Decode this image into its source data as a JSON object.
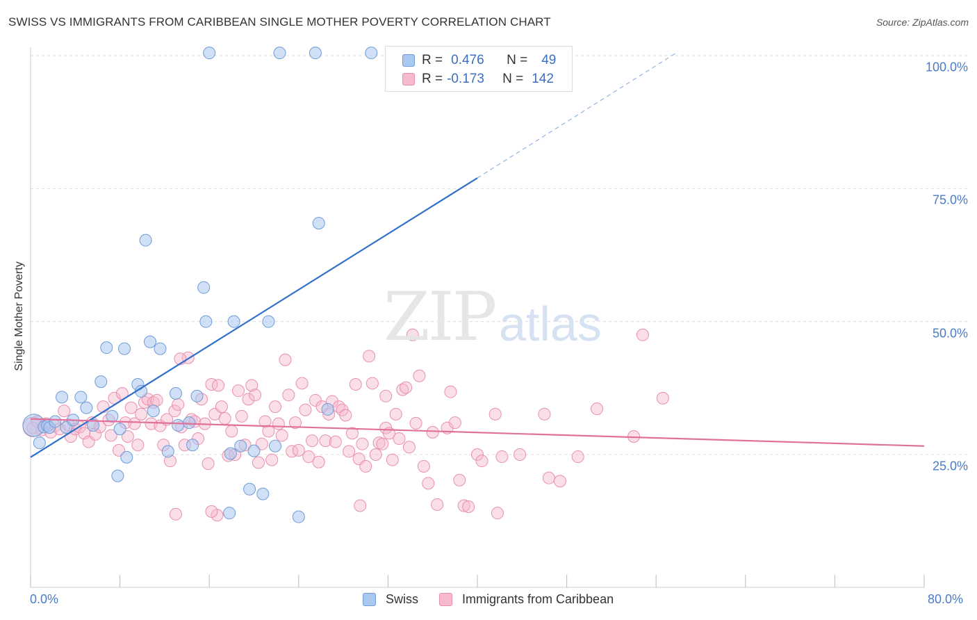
{
  "title": "SWISS VS IMMIGRANTS FROM CARIBBEAN SINGLE MOTHER POVERTY CORRELATION CHART",
  "source": "Source: ZipAtlas.com",
  "watermark": {
    "zip": "ZIP",
    "atlas": "atlas"
  },
  "colors": {
    "swiss_fill": "#a9c7ef",
    "swiss_stroke": "#6f9bd8",
    "swiss_line": "#2f6fcc",
    "carib_fill": "#f6b9cd",
    "carib_stroke": "#e88fae",
    "carib_line": "#e0719a",
    "grid": "#dddddd",
    "tick_text": "#4a7cc7"
  },
  "legend": {
    "rows": [
      {
        "r_label": "R =",
        "r_value": "0.476",
        "n_label": "N =",
        "n_value": "49"
      },
      {
        "r_label": "R =",
        "r_value": "-0.173",
        "n_label": "N =",
        "n_value": "142"
      }
    ]
  },
  "bottom_legend": {
    "swiss": "Swiss",
    "carib": "Immigrants from Caribbean"
  },
  "chart_data": {
    "type": "scatter",
    "title": "SWISS VS IMMIGRANTS FROM CARIBBEAN SINGLE MOTHER POVERTY CORRELATION CHART",
    "xlabel": "",
    "ylabel": "Single Mother Poverty",
    "xlim": [
      0,
      80
    ],
    "ylim": [
      0,
      105
    ],
    "x_tick_labels": [
      "0.0%",
      "80.0%"
    ],
    "y_ticks": [
      25,
      50,
      75,
      100
    ],
    "y_tick_labels": [
      "25.0%",
      "50.0%",
      "75.0%",
      "100.0%"
    ],
    "grid": true,
    "legend_position": "top-center",
    "series": [
      {
        "name": "Swiss",
        "r": 0.476,
        "n": 49,
        "trend": {
          "x": [
            0,
            40
          ],
          "y": [
            24.5,
            77
          ]
        },
        "trend_dashed": {
          "x": [
            40,
            57.8
          ],
          "y": [
            77,
            100.5
          ]
        },
        "points": [
          [
            0.3,
            30.5
          ],
          [
            0.8,
            27.2
          ],
          [
            1.2,
            30.2
          ],
          [
            1.5,
            30.4
          ],
          [
            1.7,
            30.1
          ],
          [
            2.2,
            31.2
          ],
          [
            2.8,
            35.8
          ],
          [
            3.2,
            30.1
          ],
          [
            3.8,
            31.5
          ],
          [
            4.5,
            35.8
          ],
          [
            5.0,
            33.8
          ],
          [
            5.6,
            30.5
          ],
          [
            6.3,
            38.7
          ],
          [
            6.8,
            45.1
          ],
          [
            7.3,
            32.2
          ],
          [
            7.8,
            21.0
          ],
          [
            8.4,
            44.9
          ],
          [
            8.6,
            24.5
          ],
          [
            9.6,
            38.2
          ],
          [
            10.3,
            65.3
          ],
          [
            10.7,
            46.2
          ],
          [
            9.9,
            36.9
          ],
          [
            11.0,
            33.2
          ],
          [
            11.6,
            44.9
          ],
          [
            12.3,
            25.6
          ],
          [
            13.2,
            30.5
          ],
          [
            13.0,
            36.5
          ],
          [
            14.2,
            31.0
          ],
          [
            14.5,
            26.8
          ],
          [
            14.9,
            36.0
          ],
          [
            15.5,
            56.4
          ],
          [
            15.7,
            50.0
          ],
          [
            16.0,
            100.5
          ],
          [
            17.8,
            14.0
          ],
          [
            17.9,
            25.2
          ],
          [
            18.2,
            50.0
          ],
          [
            18.8,
            26.6
          ],
          [
            19.6,
            18.5
          ],
          [
            20.0,
            25.7
          ],
          [
            20.8,
            17.6
          ],
          [
            21.3,
            50.0
          ],
          [
            21.9,
            26.6
          ],
          [
            22.3,
            100.5
          ],
          [
            24.0,
            13.3
          ],
          [
            25.5,
            100.5
          ],
          [
            25.8,
            68.5
          ],
          [
            26.6,
            33.5
          ],
          [
            30.5,
            100.5
          ],
          [
            8.0,
            29.8
          ]
        ]
      },
      {
        "name": "Immigrants from Caribbean",
        "r": -0.173,
        "n": 142,
        "trend": {
          "x": [
            0,
            80
          ],
          "y": [
            31.7,
            26.6
          ]
        },
        "points": [
          [
            0.2,
            30.0
          ],
          [
            0.6,
            31.2
          ],
          [
            1.0,
            29.6
          ],
          [
            1.4,
            30.8
          ],
          [
            1.8,
            29.2
          ],
          [
            2.2,
            30.4
          ],
          [
            2.6,
            29.8
          ],
          [
            3.0,
            33.2
          ],
          [
            3.4,
            30.6
          ],
          [
            3.6,
            28.4
          ],
          [
            4.0,
            29.8
          ],
          [
            4.4,
            30.2
          ],
          [
            4.8,
            29.0
          ],
          [
            5.2,
            27.4
          ],
          [
            5.5,
            31.0
          ],
          [
            5.8,
            28.8
          ],
          [
            6.2,
            30.2
          ],
          [
            6.5,
            34.0
          ],
          [
            7.0,
            31.5
          ],
          [
            7.2,
            28.6
          ],
          [
            7.5,
            35.6
          ],
          [
            7.9,
            25.8
          ],
          [
            8.2,
            36.5
          ],
          [
            8.5,
            31.0
          ],
          [
            8.7,
            28.4
          ],
          [
            9.0,
            33.8
          ],
          [
            9.3,
            30.8
          ],
          [
            9.6,
            26.8
          ],
          [
            9.9,
            32.6
          ],
          [
            10.2,
            34.8
          ],
          [
            10.5,
            35.4
          ],
          [
            10.8,
            30.8
          ],
          [
            11.0,
            34.8
          ],
          [
            11.3,
            35.2
          ],
          [
            11.6,
            30.4
          ],
          [
            11.9,
            26.8
          ],
          [
            12.2,
            31.6
          ],
          [
            12.5,
            23.8
          ],
          [
            12.9,
            33.2
          ],
          [
            13.2,
            34.4
          ],
          [
            13.5,
            30.2
          ],
          [
            13.8,
            26.8
          ],
          [
            14.1,
            43.2
          ],
          [
            14.4,
            31.6
          ],
          [
            14.7,
            31.2
          ],
          [
            15.0,
            28.0
          ],
          [
            15.3,
            35.4
          ],
          [
            15.6,
            30.8
          ],
          [
            15.9,
            23.3
          ],
          [
            16.2,
            38.2
          ],
          [
            16.5,
            32.6
          ],
          [
            16.8,
            38.0
          ],
          [
            17.1,
            34.0
          ],
          [
            17.4,
            31.8
          ],
          [
            17.7,
            24.8
          ],
          [
            18.0,
            29.4
          ],
          [
            18.3,
            25.0
          ],
          [
            18.6,
            37.0
          ],
          [
            18.9,
            32.2
          ],
          [
            19.2,
            26.8
          ],
          [
            19.5,
            35.4
          ],
          [
            19.8,
            38.0
          ],
          [
            20.1,
            36.2
          ],
          [
            20.4,
            23.5
          ],
          [
            20.7,
            27.0
          ],
          [
            21.0,
            31.2
          ],
          [
            21.3,
            29.4
          ],
          [
            21.6,
            24.0
          ],
          [
            21.9,
            34.0
          ],
          [
            22.2,
            30.8
          ],
          [
            22.5,
            28.6
          ],
          [
            22.8,
            42.8
          ],
          [
            23.1,
            36.2
          ],
          [
            23.4,
            25.6
          ],
          [
            23.7,
            31.0
          ],
          [
            24.0,
            25.8
          ],
          [
            24.3,
            38.4
          ],
          [
            24.6,
            33.4
          ],
          [
            24.9,
            24.6
          ],
          [
            25.2,
            27.6
          ],
          [
            25.5,
            35.2
          ],
          [
            25.8,
            23.6
          ],
          [
            26.1,
            34.0
          ],
          [
            26.4,
            27.6
          ],
          [
            26.7,
            32.6
          ],
          [
            27.0,
            35.0
          ],
          [
            27.3,
            27.4
          ],
          [
            27.6,
            34.0
          ],
          [
            27.9,
            33.4
          ],
          [
            28.2,
            32.4
          ],
          [
            28.5,
            25.6
          ],
          [
            28.8,
            29.0
          ],
          [
            29.1,
            38.2
          ],
          [
            29.4,
            24.2
          ],
          [
            29.7,
            27.0
          ],
          [
            30.0,
            22.8
          ],
          [
            30.3,
            43.5
          ],
          [
            30.6,
            38.4
          ],
          [
            30.9,
            25.0
          ],
          [
            31.2,
            27.2
          ],
          [
            31.5,
            27.0
          ],
          [
            31.8,
            30.0
          ],
          [
            32.1,
            29.0
          ],
          [
            32.4,
            24.0
          ],
          [
            32.7,
            32.6
          ],
          [
            33.0,
            28.0
          ],
          [
            33.3,
            37.2
          ],
          [
            33.6,
            37.6
          ],
          [
            33.9,
            26.4
          ],
          [
            34.2,
            47.5
          ],
          [
            34.5,
            30.9
          ],
          [
            34.8,
            39.8
          ],
          [
            35.2,
            22.8
          ],
          [
            35.6,
            19.6
          ],
          [
            36.0,
            29.2
          ],
          [
            36.4,
            15.6
          ],
          [
            37.3,
            30.0
          ],
          [
            37.6,
            36.8
          ],
          [
            38.0,
            31.0
          ],
          [
            38.4,
            20.2
          ],
          [
            38.8,
            15.4
          ],
          [
            39.2,
            15.2
          ],
          [
            40.0,
            25.0
          ],
          [
            40.4,
            23.8
          ],
          [
            41.6,
            32.6
          ],
          [
            42.2,
            24.6
          ],
          [
            43.8,
            25.0
          ],
          [
            46.0,
            32.6
          ],
          [
            46.4,
            20.6
          ],
          [
            47.4,
            20.0
          ],
          [
            49.0,
            24.6
          ],
          [
            50.7,
            33.6
          ],
          [
            54.0,
            28.4
          ],
          [
            54.8,
            47.5
          ],
          [
            56.6,
            35.6
          ],
          [
            31.8,
            36.0
          ],
          [
            13.4,
            43.0
          ],
          [
            13.0,
            13.8
          ],
          [
            16.7,
            13.6
          ],
          [
            16.2,
            14.3
          ],
          [
            29.5,
            15.4
          ],
          [
            41.8,
            14.0
          ]
        ]
      }
    ]
  }
}
